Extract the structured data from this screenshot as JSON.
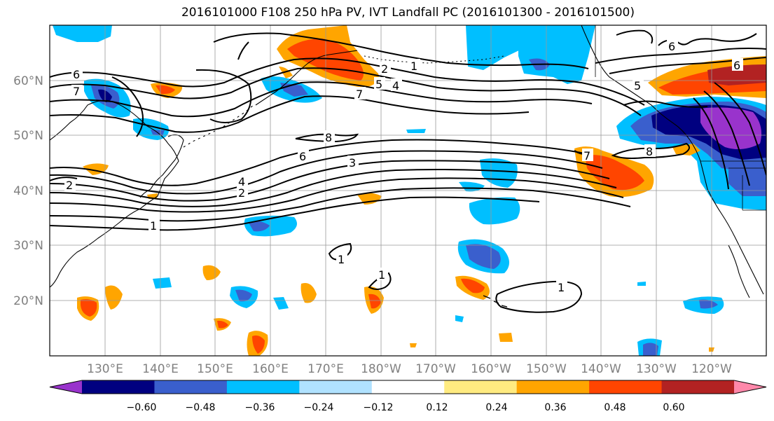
{
  "title": "2016101000 F108 250 hPa PV, IVT Landfall PC (2016101300 - 2016101500)",
  "lat_labels": [
    "60°N",
    "50°N",
    "40°N",
    "30°N",
    "20°N"
  ],
  "lon_labels": [
    "130°E",
    "140°E",
    "150°E",
    "160°E",
    "170°E",
    "180°W",
    "170°W",
    "160°W",
    "150°W",
    "140°W",
    "130°W",
    "120°W"
  ],
  "colorbar": {
    "colors": [
      "#9933cc",
      "#000080",
      "#3a5fcd",
      "#00bfff",
      "#b0e2ff",
      "#ffffff",
      "#ffeb80",
      "#ffa500",
      "#ff4500",
      "#b22222",
      "#ff88aa"
    ],
    "labels": [
      "−0.60",
      "−0.48",
      "−0.36",
      "−0.24",
      "−0.12",
      "0.12",
      "0.24",
      "0.36",
      "0.48",
      "0.60"
    ]
  },
  "contour_labels": {
    "w6": "6",
    "w7": "7",
    "w2": "2",
    "w1": "1",
    "c8": "8",
    "c6": "6",
    "c3": "3",
    "c4": "4",
    "c2": "2",
    "n2": "2",
    "n1": "1",
    "n7": "7",
    "n4": "4",
    "n5": "5",
    "e5": "5",
    "e6a": "6",
    "e6b": "6",
    "e8": "8",
    "e7": "7",
    "s1a": "1",
    "s1b": "1",
    "s1c": "1"
  }
}
